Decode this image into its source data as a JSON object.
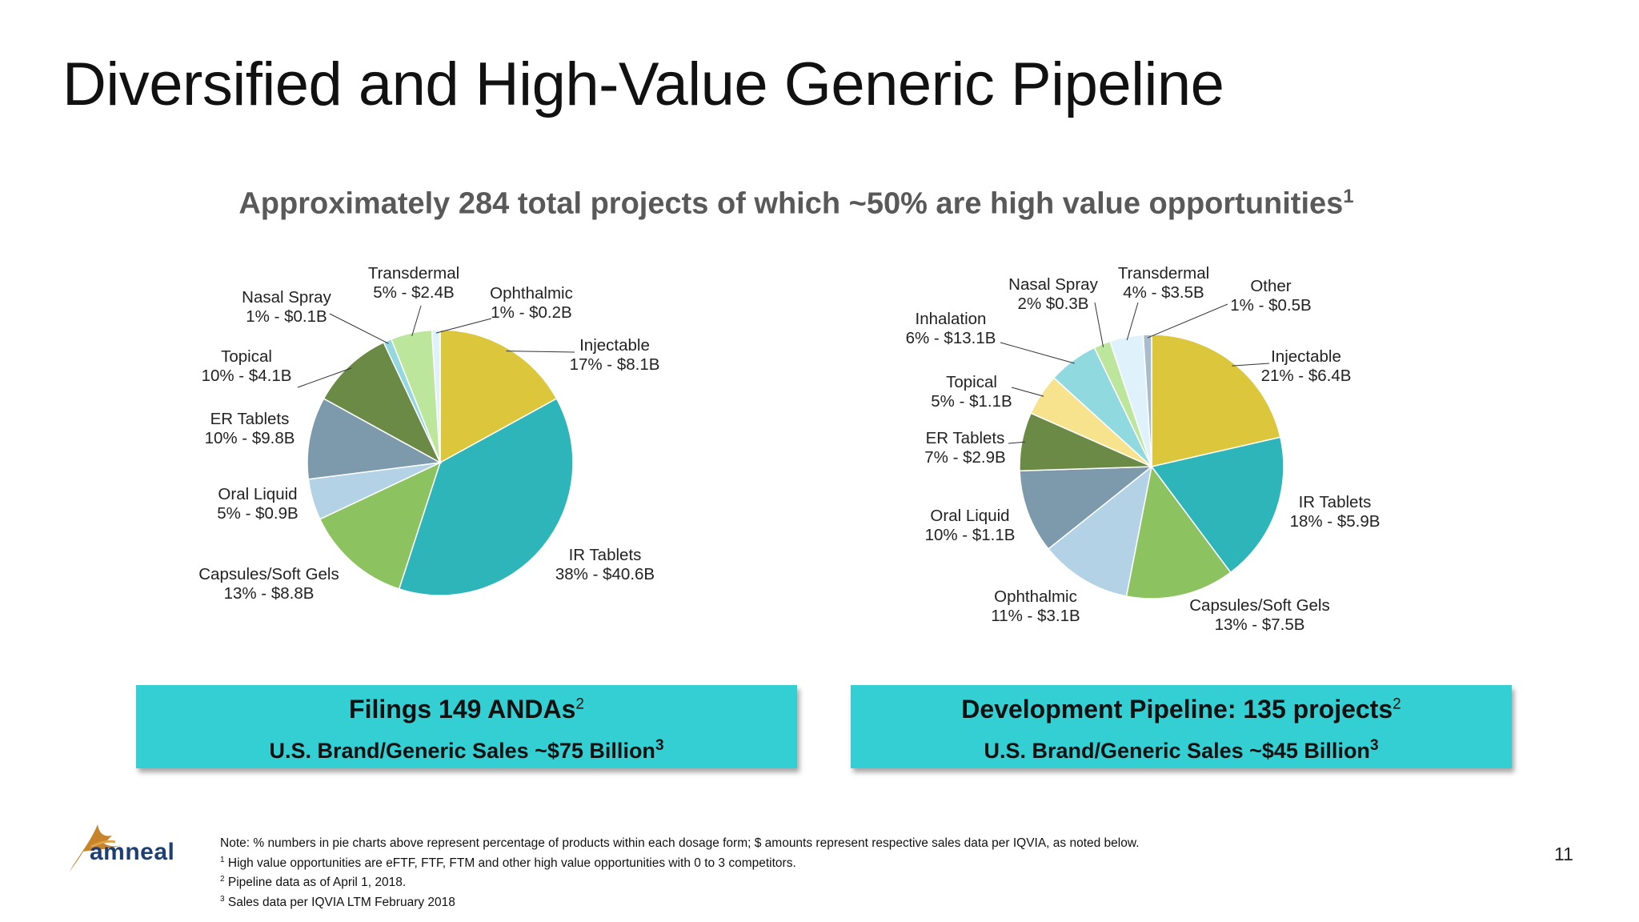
{
  "title": "Diversified and High-Value Generic Pipeline",
  "subtitle": {
    "text": "Approximately 284 total projects of which ~50% are high value opportunities",
    "sup": "1"
  },
  "chart_data": [
    {
      "type": "pie",
      "slices": [
        {
          "name": "Injectable",
          "value": 17,
          "label": "17% - $8.1B",
          "color": "#dcc63b"
        },
        {
          "name": "IR Tablets",
          "value": 38,
          "label": "38% - $40.6B",
          "color": "#2db5b9"
        },
        {
          "name": "Capsules/Soft Gels",
          "value": 13,
          "label": "13% - $8.8B",
          "color": "#8cc360"
        },
        {
          "name": "Oral Liquid",
          "value": 5,
          "label": "5% - $0.9B",
          "color": "#b3d2e5"
        },
        {
          "name": "ER Tablets",
          "value": 10,
          "label": "10% - $9.8B",
          "color": "#7d9aad"
        },
        {
          "name": "Topical",
          "value": 10,
          "label": "10% - $4.1B",
          "color": "#6b8a46"
        },
        {
          "name": "Nasal Spray",
          "value": 1,
          "label": "1% - $0.1B",
          "color": "#93d7df"
        },
        {
          "name": "Transdermal",
          "value": 5,
          "label": "5% - $2.4B",
          "color": "#bde69d"
        },
        {
          "name": "Ophthalmic",
          "value": 1,
          "label": "1% - $0.2B",
          "color": "#dff1fb"
        }
      ]
    },
    {
      "type": "pie",
      "slices": [
        {
          "name": "Injectable",
          "value": 21,
          "label": "21% - $6.4B",
          "color": "#dcc63b"
        },
        {
          "name": "IR Tablets",
          "value": 18,
          "label": "18% - $5.9B",
          "color": "#2db5b9"
        },
        {
          "name": "Capsules/Soft Gels",
          "value": 13,
          "label": "13% - $7.5B",
          "color": "#8cc360"
        },
        {
          "name": "Ophthalmic",
          "value": 11,
          "label": "11% - $3.1B",
          "color": "#b3d2e5"
        },
        {
          "name": "Oral Liquid",
          "value": 10,
          "label": "10% - $1.1B",
          "color": "#7d9aad"
        },
        {
          "name": "ER Tablets",
          "value": 7,
          "label": "7% - $2.9B",
          "color": "#6b8a46"
        },
        {
          "name": "Topical",
          "value": 5,
          "label": "5% - $1.1B",
          "color": "#f7e38e"
        },
        {
          "name": "Inhalation",
          "value": 6,
          "label": "6% - $13.1B",
          "color": "#8fd9df"
        },
        {
          "name": "Nasal Spray",
          "value": 2,
          "label": "2% $0.3B",
          "color": "#bde69d"
        },
        {
          "name": "Transdermal",
          "value": 4,
          "label": "4% - $3.5B",
          "color": "#dff1fb"
        },
        {
          "name": "Other",
          "value": 1,
          "label": "1% - $0.5B",
          "color": "#a9bccc"
        }
      ]
    }
  ],
  "boxes": [
    {
      "line1": "Filings 149 ANDAs",
      "line1_sup": "2",
      "line2": "U.S. Brand/Generic Sales ~$75 Billion",
      "line2_sup": "3"
    },
    {
      "line1": "Development Pipeline: 135 projects",
      "line1_sup": "2",
      "line2": "U.S. Brand/Generic Sales ~$45 Billion",
      "line2_sup": "3"
    }
  ],
  "footer": {
    "logo_text": "amneal",
    "note": "Note: % numbers in pie charts above represent percentage of products within each dosage form; $ amounts represent respective sales data per IQVIA, as noted below.",
    "footnotes": [
      {
        "sup": "1",
        "text": "High value opportunities are eFTF, FTF, FTM and other high value opportunities with 0 to 3 competitors."
      },
      {
        "sup": "2",
        "text": "Pipeline data as of April 1, 2018."
      },
      {
        "sup": "3",
        "text": "Sales data per IQVIA LTM February 2018"
      }
    ],
    "page_number": "11"
  }
}
